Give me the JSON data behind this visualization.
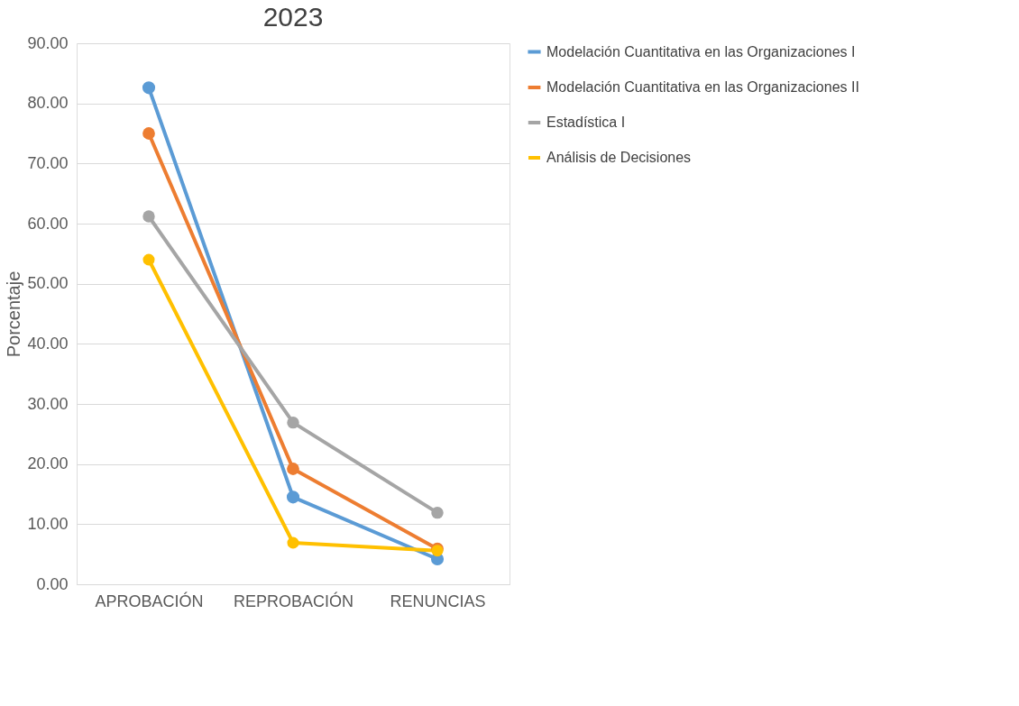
{
  "chart_data": {
    "type": "line",
    "title": "2023",
    "ylabel": "Porcentaje",
    "categories": [
      "APROBACIÓN",
      "REPROBACIÓN",
      "RENUNCIAS"
    ],
    "series": [
      {
        "name": "Modelación Cuantitativa en las Organizaciones I",
        "color": "#5b9bd5",
        "values": [
          82.6,
          14.5,
          4.2
        ]
      },
      {
        "name": "Modelación Cuantitativa en las Organizaciones II",
        "color": "#ed7d31",
        "values": [
          75.0,
          19.2,
          5.9
        ]
      },
      {
        "name": "Estadística I",
        "color": "#a5a5a5",
        "values": [
          61.2,
          26.9,
          11.9
        ]
      },
      {
        "name": "Análisis de Decisiones",
        "color": "#ffc000",
        "values": [
          54.0,
          6.9,
          5.6
        ]
      }
    ],
    "ylim": [
      0,
      90
    ],
    "yticks": [
      {
        "value": 0,
        "label": "0.00"
      },
      {
        "value": 10,
        "label": "10.00"
      },
      {
        "value": 20,
        "label": "20.00"
      },
      {
        "value": 30,
        "label": "30.00"
      },
      {
        "value": 40,
        "label": "40.00"
      },
      {
        "value": 50,
        "label": "50.00"
      },
      {
        "value": 60,
        "label": "60.00"
      },
      {
        "value": 70,
        "label": "70.00"
      },
      {
        "value": 80,
        "label": "80.00"
      },
      {
        "value": 90,
        "label": "90.00"
      }
    ],
    "grid": "y",
    "legend": "right",
    "marker": "circle",
    "line_style": "solid"
  }
}
